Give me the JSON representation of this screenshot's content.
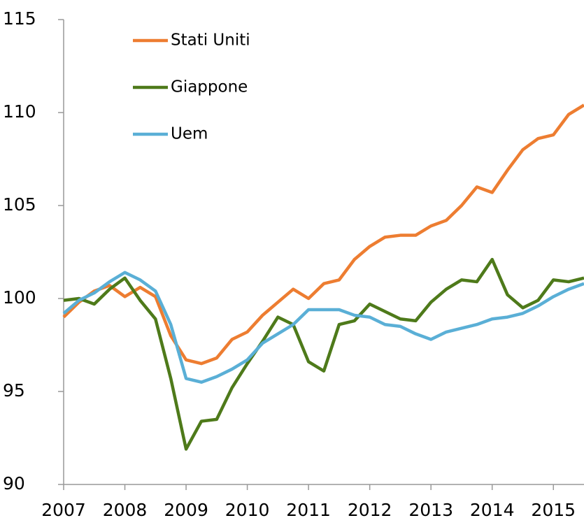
{
  "chart_data": {
    "type": "line",
    "x": [
      2007,
      2007.25,
      2007.5,
      2007.75,
      2008,
      2008.25,
      2008.5,
      2008.75,
      2009,
      2009.25,
      2009.5,
      2009.75,
      2010,
      2010.25,
      2010.5,
      2010.75,
      2011,
      2011.25,
      2011.5,
      2011.75,
      2012,
      2012.25,
      2012.5,
      2012.75,
      2013,
      2013.25,
      2013.5,
      2013.75,
      2014,
      2014.25,
      2014.5,
      2014.75,
      2015,
      2015.25,
      2015.5
    ],
    "series": [
      {
        "name": "Stati Uniti",
        "color": "#ed7d31",
        "values": [
          99.0,
          99.8,
          100.4,
          100.7,
          100.1,
          100.6,
          100.1,
          98.0,
          96.7,
          96.5,
          96.8,
          97.8,
          98.2,
          99.1,
          99.8,
          100.5,
          100.0,
          100.8,
          101.0,
          102.1,
          102.8,
          103.3,
          103.4,
          103.4,
          103.9,
          104.2,
          105.0,
          106.0,
          105.7,
          106.9,
          108.0,
          108.6,
          108.8,
          109.9,
          110.4
        ]
      },
      {
        "name": "Giappone",
        "color": "#4e7a1a",
        "values": [
          99.9,
          100.0,
          99.7,
          100.5,
          101.1,
          99.9,
          98.9,
          95.7,
          91.9,
          93.4,
          93.5,
          95.2,
          96.5,
          97.7,
          99.0,
          98.6,
          96.6,
          96.1,
          98.6,
          98.8,
          99.7,
          99.3,
          98.9,
          98.8,
          99.8,
          100.5,
          101.0,
          100.9,
          102.1,
          100.2,
          99.5,
          99.9,
          101.0,
          100.9,
          101.1
        ]
      },
      {
        "name": "Uem",
        "color": "#5aafd6",
        "values": [
          99.2,
          99.9,
          100.3,
          100.9,
          101.4,
          101.0,
          100.4,
          98.6,
          95.7,
          95.5,
          95.8,
          96.2,
          96.7,
          97.6,
          98.1,
          98.6,
          99.4,
          99.4,
          99.4,
          99.1,
          99.0,
          98.6,
          98.5,
          98.1,
          97.8,
          98.2,
          98.4,
          98.6,
          98.9,
          99.0,
          99.2,
          99.6,
          100.1,
          100.5,
          100.8
        ]
      }
    ],
    "xlim": [
      2007,
      2015.5
    ],
    "xticks": [
      2007,
      2008,
      2009,
      2010,
      2011,
      2012,
      2013,
      2014,
      2015
    ],
    "ylim": [
      90,
      115
    ],
    "yticks": [
      90,
      95,
      100,
      105,
      110,
      115
    ],
    "legend": "upper left"
  }
}
